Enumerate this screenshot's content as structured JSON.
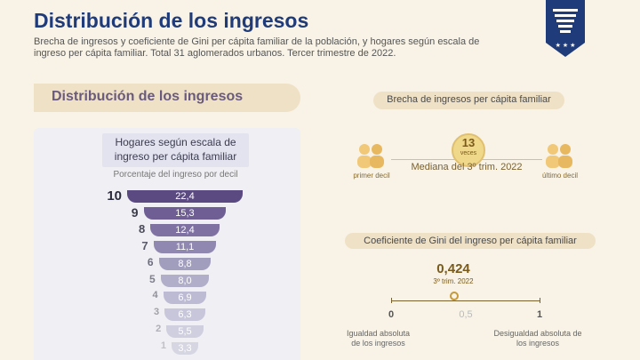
{
  "header": {
    "title": "Distribución de los ingresos",
    "subtitle": "Brecha de ingresos y coeficiente de Gini per cápita familiar de la población, y hogares según escala de ingreso per cápita familiar. Total 31 aglomerados urbanos. Tercer trimestre de 2022."
  },
  "section": {
    "label": "Distribución de los ingresos"
  },
  "hogares": {
    "title": "Hogares según escala de ingreso per cápita familiar",
    "percent_label": "Porcentaje del ingreso por decil",
    "deciles": [
      {
        "decil": "10",
        "value": "22,4",
        "v": 22.4
      },
      {
        "decil": "9",
        "value": "15,3",
        "v": 15.3
      },
      {
        "decil": "8",
        "value": "12,4",
        "v": 12.4
      },
      {
        "decil": "7",
        "value": "11,1",
        "v": 11.1
      },
      {
        "decil": "6",
        "value": "8,8",
        "v": 8.8
      },
      {
        "decil": "5",
        "value": "8,0",
        "v": 8.0
      },
      {
        "decil": "4",
        "value": "6,9",
        "v": 6.9
      },
      {
        "decil": "3",
        "value": "6,3",
        "v": 6.3
      },
      {
        "decil": "2",
        "value": "5,5",
        "v": 5.5
      },
      {
        "decil": "1",
        "value": "3,3",
        "v": 3.3
      }
    ]
  },
  "brecha": {
    "title": "Brecha de ingresos per cápita familiar",
    "value": "13",
    "unit": "veces",
    "mediana": "Mediana del 3º trim. 2022",
    "left_label": "primer decil",
    "right_label": "último decil"
  },
  "gini": {
    "title": "Coeficiente de Gini del ingreso per cápita familiar",
    "value": "0,424",
    "value_num": 0.424,
    "period": "3º trim. 2022",
    "ticks": [
      "0",
      "0,5",
      "1"
    ],
    "left_label": "Igualdad absoluta de los ingresos",
    "right_label": "Desigualdad absoluta de los ingresos"
  },
  "colors": {
    "title": "#1f3b7a",
    "decil_10": "#5b4a82",
    "decil_1": "#cfcfdc",
    "accent": "#c49a3a"
  }
}
